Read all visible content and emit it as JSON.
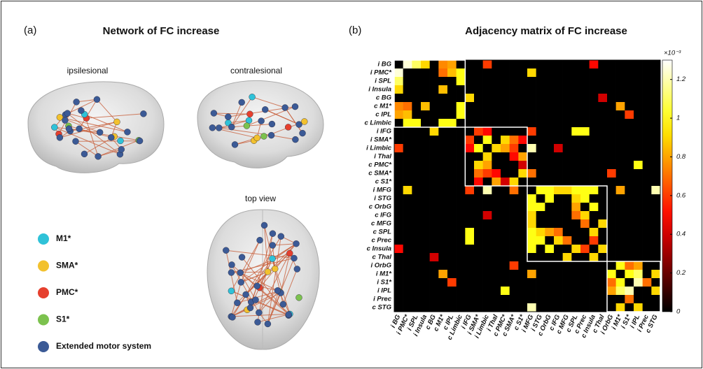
{
  "panel_a": {
    "label": "(a)",
    "title": "Network of FC increase",
    "views": [
      "ipsilesional",
      "contralesional",
      "top view"
    ],
    "legend": [
      {
        "name": "M1*",
        "color": "#2fc2d8"
      },
      {
        "name": "SMA*",
        "color": "#f2c12e"
      },
      {
        "name": "PMC*",
        "color": "#e6402e"
      },
      {
        "name": "S1*",
        "color": "#7cc24e"
      },
      {
        "name": "Extended motor system",
        "color": "#3b5a96"
      }
    ]
  },
  "chart_data": {
    "type": "heatmap",
    "label": "(b)",
    "title": "Adjacency matrix of FC increase",
    "categories": [
      "i BG",
      "i PMC*",
      "i SPL",
      "i Insula",
      "c BG",
      "c M1*",
      "c IPL",
      "c Limbic",
      "i IFG",
      "i SMA*",
      "i Limbic",
      "i Thal",
      "c PMC*",
      "c SMA*",
      "c S1*",
      "i MFG",
      "i STG",
      "c OrbG",
      "c IFG",
      "c MFG",
      "c SPL",
      "c Prec",
      "c Insula",
      "c Thal",
      "i OrbG",
      "i M1*",
      "i S1*",
      "i IPL",
      "i Prec",
      "c STG"
    ],
    "values": [
      [
        0,
        1.25,
        1.1,
        0.9,
        0,
        0.75,
        0.8,
        0,
        0,
        0,
        0.6,
        0,
        0,
        0,
        0,
        0,
        0,
        0,
        0,
        0,
        0,
        0,
        0.5,
        0,
        0,
        0,
        0,
        0,
        0,
        0
      ],
      [
        1.25,
        0,
        0,
        0,
        0,
        0.7,
        0.85,
        1.0,
        0,
        0,
        0,
        0,
        0,
        0,
        0,
        0.9,
        0,
        0,
        0,
        0,
        0,
        0,
        0,
        0,
        0,
        0,
        0,
        0,
        0,
        0
      ],
      [
        1.1,
        0,
        0,
        0,
        0,
        0,
        0,
        1.0,
        0,
        0,
        0,
        0,
        0,
        0,
        0,
        0,
        0,
        0,
        0,
        0,
        0,
        0,
        0,
        0,
        0,
        0,
        0,
        0,
        0,
        0
      ],
      [
        0.9,
        0,
        0,
        0,
        0,
        0.85,
        0,
        0,
        0,
        0,
        0,
        0,
        0,
        0,
        0,
        0,
        0,
        0,
        0,
        0,
        0,
        0,
        0,
        0,
        0,
        0,
        0,
        0,
        0,
        0
      ],
      [
        0,
        0,
        0,
        0,
        0,
        0,
        0,
        0,
        0.9,
        0,
        0,
        0,
        0,
        0,
        0,
        0,
        0,
        0,
        0,
        0,
        0,
        0,
        0,
        0.4,
        0,
        0,
        0,
        0,
        0,
        0
      ],
      [
        0.75,
        0.7,
        0,
        0.85,
        0,
        0,
        0,
        1.0,
        0,
        0,
        0,
        0,
        0,
        0,
        0,
        0,
        0,
        0,
        0,
        0,
        0,
        0,
        0,
        0,
        0,
        0.8,
        0,
        0,
        0,
        0
      ],
      [
        0.8,
        0.85,
        0,
        0,
        0,
        0,
        0,
        1.0,
        0,
        0,
        0,
        0,
        0,
        0,
        0,
        0,
        0,
        0,
        0,
        0,
        0,
        0,
        0,
        0,
        0,
        0,
        0.6,
        0,
        0,
        0
      ],
      [
        0,
        1.0,
        1.0,
        0,
        0,
        1.0,
        1.0,
        0,
        0,
        0,
        0,
        0,
        0,
        0,
        0,
        0,
        0,
        0,
        0,
        0,
        0,
        0,
        0,
        0,
        0,
        0,
        0,
        0,
        0,
        0
      ],
      [
        0,
        0,
        0,
        0,
        0.9,
        0,
        0,
        0,
        0,
        0.6,
        0.5,
        0,
        0,
        0,
        0,
        0.6,
        0,
        0,
        0,
        0,
        1.0,
        1.0,
        0,
        0,
        0,
        0,
        0,
        0,
        0,
        0
      ],
      [
        0,
        0,
        0,
        0,
        0,
        0,
        0,
        0,
        0.6,
        0,
        1.0,
        0,
        0.9,
        0.7,
        0.5,
        0,
        0,
        0,
        0,
        0,
        0,
        0,
        0,
        0,
        0,
        0,
        0,
        0,
        0,
        0
      ],
      [
        0.6,
        0,
        0,
        0,
        0,
        0,
        0,
        0,
        0.5,
        1.0,
        0,
        0.9,
        0.8,
        0.6,
        0,
        1.2,
        0,
        0,
        0.4,
        0,
        0,
        0,
        0,
        0,
        0,
        0,
        0,
        0,
        0,
        0
      ],
      [
        0,
        0,
        0,
        0,
        0,
        0,
        0,
        0,
        0,
        0,
        0.9,
        0,
        0,
        0.5,
        0.8,
        0,
        0,
        0,
        0,
        0,
        0,
        0,
        0,
        0,
        0,
        0,
        0,
        0,
        0,
        0
      ],
      [
        0,
        0,
        0,
        0,
        0,
        0,
        0,
        0,
        0,
        0.9,
        0.8,
        0,
        0,
        0,
        0.4,
        0,
        0,
        0,
        0,
        0,
        0,
        0,
        0,
        0,
        0,
        0,
        0,
        1.0,
        0,
        0
      ],
      [
        0,
        0,
        0,
        0,
        0,
        0,
        0,
        0,
        0,
        0.7,
        0.6,
        0.5,
        0,
        0,
        0.9,
        0.7,
        0,
        0,
        0,
        0,
        0,
        0,
        0,
        0,
        0.6,
        0,
        0,
        0,
        0,
        0
      ],
      [
        0,
        0,
        0,
        0,
        0,
        0,
        0,
        0,
        0,
        0.5,
        0,
        0.8,
        0.4,
        0.9,
        0,
        0,
        0,
        0,
        0,
        0,
        0,
        0,
        0,
        0,
        0,
        0,
        0,
        0,
        0,
        0
      ],
      [
        0,
        0.9,
        0,
        0,
        0,
        0,
        0,
        0,
        0.6,
        0,
        1.2,
        0,
        0,
        0.7,
        0,
        0,
        1.0,
        1.0,
        0.9,
        0.9,
        1.0,
        1.0,
        1.0,
        0,
        0,
        0.8,
        0,
        0,
        0,
        1.2
      ],
      [
        0,
        0,
        0,
        0,
        0,
        0,
        0,
        0,
        0,
        0,
        0,
        0,
        0,
        0,
        0,
        1.0,
        0,
        1.0,
        0,
        0,
        0.9,
        1.0,
        0,
        0,
        0,
        0,
        0,
        0,
        0,
        0
      ],
      [
        0,
        0,
        0,
        0,
        0,
        0,
        0,
        0,
        0,
        0,
        0,
        0,
        0,
        0,
        0,
        1.0,
        1.0,
        0,
        0,
        0,
        0.8,
        0,
        1.0,
        0,
        0,
        0,
        0,
        0,
        0,
        0
      ],
      [
        0,
        0,
        0,
        0,
        0,
        0,
        0,
        0,
        0,
        0,
        0.4,
        0,
        0,
        0,
        0,
        0.9,
        0,
        0,
        0,
        0,
        0.7,
        0.9,
        0,
        0,
        0,
        0,
        0,
        0,
        0,
        0
      ],
      [
        0,
        0,
        0,
        0,
        0,
        0,
        0,
        0,
        0,
        0,
        0,
        0,
        0,
        0,
        0,
        0.9,
        0,
        0,
        0,
        0,
        0,
        0.7,
        0,
        0.9,
        0,
        0,
        0,
        0,
        0,
        0
      ],
      [
        0,
        0,
        0,
        0,
        0,
        0,
        0,
        0,
        1.0,
        0,
        0,
        0,
        0,
        0,
        0,
        1.0,
        0.9,
        0.8,
        0.7,
        0,
        0,
        0,
        0.9,
        0,
        0,
        0,
        0,
        0,
        0,
        0
      ],
      [
        0,
        0,
        0,
        0,
        0,
        0,
        0,
        0,
        1.0,
        0,
        0,
        0,
        0,
        0,
        0,
        1.0,
        1.0,
        0,
        0.9,
        0.7,
        0,
        0,
        0.6,
        0,
        0,
        0,
        0,
        0,
        0,
        0
      ],
      [
        0.5,
        0,
        0,
        0,
        0,
        0,
        0,
        0,
        0,
        0,
        0,
        0,
        0,
        0,
        0,
        1.0,
        0,
        1.0,
        0,
        0,
        0.9,
        0.6,
        0,
        0.9,
        0,
        0,
        0,
        0,
        0,
        0
      ],
      [
        0,
        0,
        0,
        0,
        0.4,
        0,
        0,
        0,
        0,
        0,
        0,
        0,
        0,
        0,
        0,
        0,
        0,
        0,
        0,
        0.9,
        0,
        0,
        0.9,
        0,
        0,
        0,
        0,
        0,
        0,
        0
      ],
      [
        0,
        0,
        0,
        0,
        0,
        0,
        0,
        0,
        0,
        0,
        0,
        0,
        0,
        0.6,
        0,
        0,
        0,
        0,
        0,
        0,
        0,
        0,
        0,
        0,
        0,
        1.0,
        0.7,
        0.8,
        0,
        0
      ],
      [
        0,
        0,
        0,
        0,
        0,
        0.8,
        0,
        0,
        0,
        0,
        0,
        0,
        0,
        0,
        0,
        0.8,
        0,
        0,
        0,
        0,
        0,
        0,
        0,
        0,
        1.0,
        0,
        1.0,
        1.1,
        0,
        0.9
      ],
      [
        0,
        0,
        0,
        0,
        0,
        0,
        0.6,
        0,
        0,
        0,
        0,
        0,
        0,
        0,
        0,
        0,
        0,
        0,
        0,
        0,
        0,
        0,
        0,
        0,
        0.7,
        1.0,
        0,
        1.2,
        0.7,
        0
      ],
      [
        0,
        0,
        0,
        0,
        0,
        0,
        0,
        0,
        0,
        0,
        0,
        0,
        1.0,
        0,
        0,
        0,
        0,
        0,
        0,
        0,
        0,
        0,
        0,
        0,
        0.8,
        1.1,
        1.2,
        0,
        0,
        0.9
      ],
      [
        0,
        0,
        0,
        0,
        0,
        0,
        0,
        0,
        0,
        0,
        0,
        0,
        0,
        0,
        0,
        0,
        0,
        0,
        0,
        0,
        0,
        0,
        0,
        0,
        0,
        0,
        0.7,
        0,
        0,
        0
      ],
      [
        0,
        0,
        0,
        0,
        0,
        0,
        0,
        0,
        0,
        0,
        0,
        0,
        0,
        0,
        0,
        1.2,
        0,
        0,
        0,
        0,
        0,
        0,
        0,
        0,
        0,
        0.9,
        0,
        0.9,
        0,
        0
      ]
    ],
    "colormap": "hot",
    "clim": [
      0,
      1.3
    ],
    "cticks": [
      0,
      0.2,
      0.4,
      0.6,
      0.8,
      1,
      1.2
    ],
    "colorbar_label": "×10⁻³"
  }
}
